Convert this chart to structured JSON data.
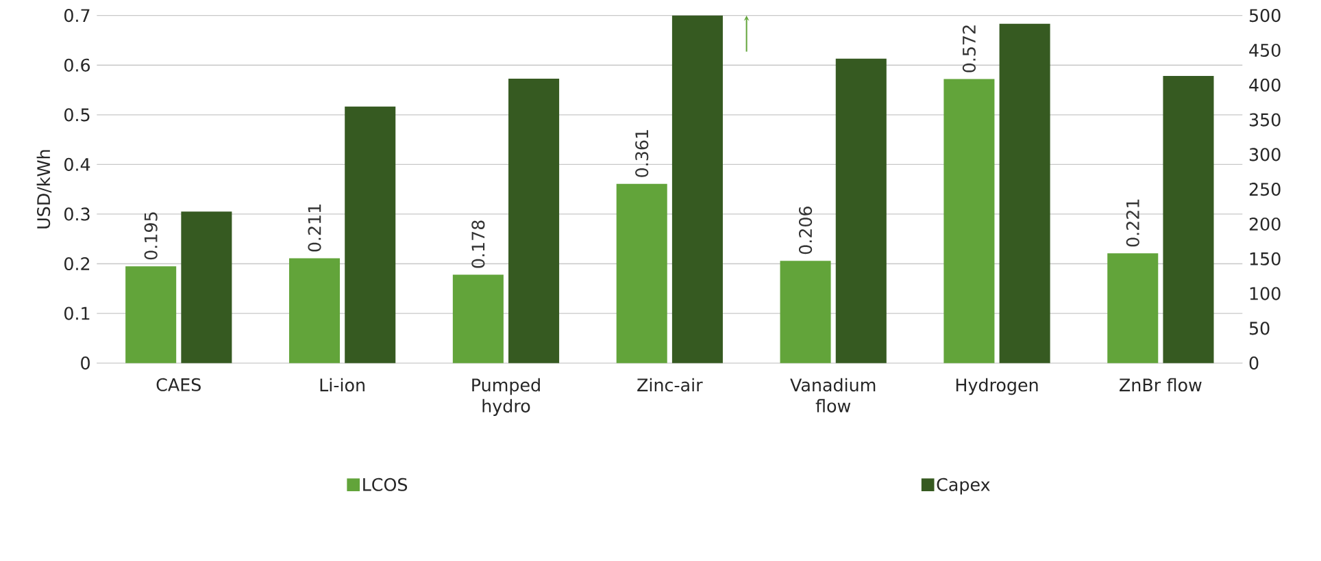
{
  "chart_data": {
    "type": "bar",
    "ylabel": "USD/kWh",
    "categories": [
      "CAES",
      "Li-ion",
      "Pumped hydro",
      "Zinc-air",
      "Vanadium flow",
      "Hydrogen",
      "ZnBr flow"
    ],
    "series": [
      {
        "name": "LCOS",
        "color": "#62a43a",
        "values": [
          0.195,
          0.211,
          0.178,
          0.361,
          0.206,
          0.572,
          0.221
        ],
        "value_labels": [
          "0.195",
          "0.211",
          "0.178",
          "0.361",
          "0.206",
          "0.572",
          "0.221"
        ]
      },
      {
        "name": "Capex",
        "color": "#365a21",
        "axis": "y2",
        "values": [
          218,
          369,
          409,
          500,
          438,
          488,
          413
        ]
      }
    ],
    "ylim": [
      0,
      0.7
    ],
    "yticks": [
      0,
      0.1,
      0.2,
      0.3,
      0.4,
      0.5,
      0.6,
      0.7
    ],
    "y2lim": [
      0,
      500
    ],
    "y2ticks": [
      0,
      50,
      100,
      150,
      200,
      250,
      300,
      350,
      400,
      450,
      500
    ],
    "grid": "y",
    "legend": "bottom"
  }
}
